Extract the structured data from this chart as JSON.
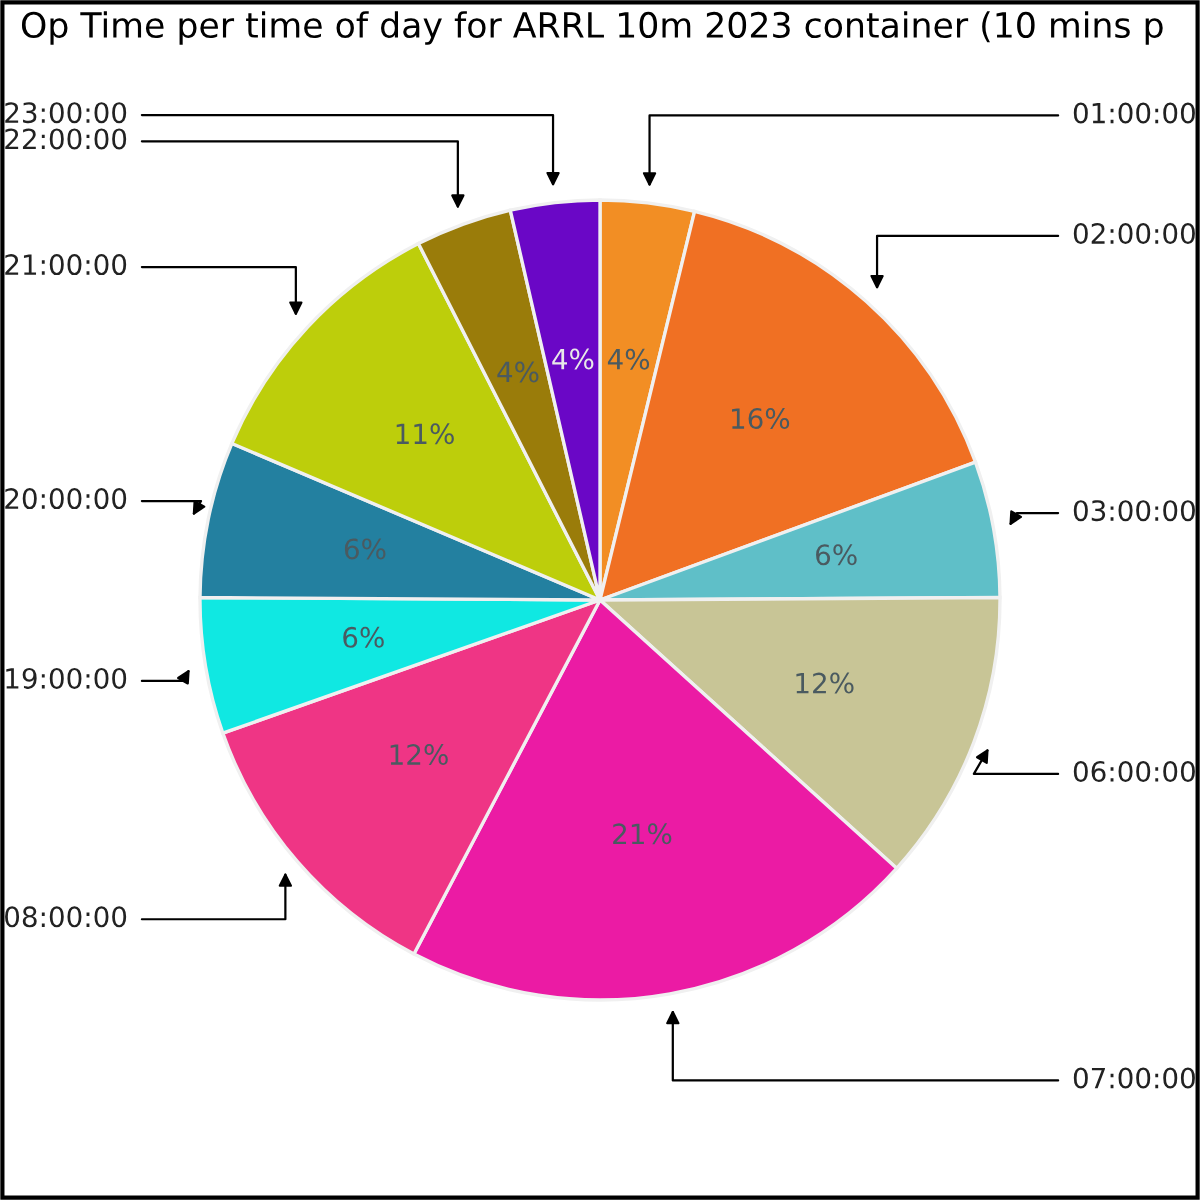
{
  "chart_data": {
    "type": "pie",
    "title": "Op Time per time of day for ARRL 10m 2023 container (10 mins p",
    "categories": [
      "01:00:00",
      "02:00:00",
      "03:00:00",
      "06:00:00",
      "07:00:00",
      "08:00:00",
      "19:00:00",
      "20:00:00",
      "21:00:00",
      "22:00:00",
      "23:00:00"
    ],
    "values": [
      3.8,
      15.6,
      5.5,
      11.8,
      21.0,
      11.9,
      5.5,
      6.3,
      11.1,
      3.9,
      3.6
    ],
    "value_labels": [
      "4%",
      "16%",
      "6%",
      "12%",
      "21%",
      "12%",
      "6%",
      "6%",
      "11%",
      "4%",
      "4%"
    ],
    "colors": [
      "#f28e24",
      "#f07023",
      "#5fbfc8",
      "#c8c596",
      "#eb1ba4",
      "#ef3585",
      "#10e8e2",
      "#2380a0",
      "#bdce0b",
      "#9a7c0a",
      "#6a07c6"
    ],
    "legend": false
  }
}
